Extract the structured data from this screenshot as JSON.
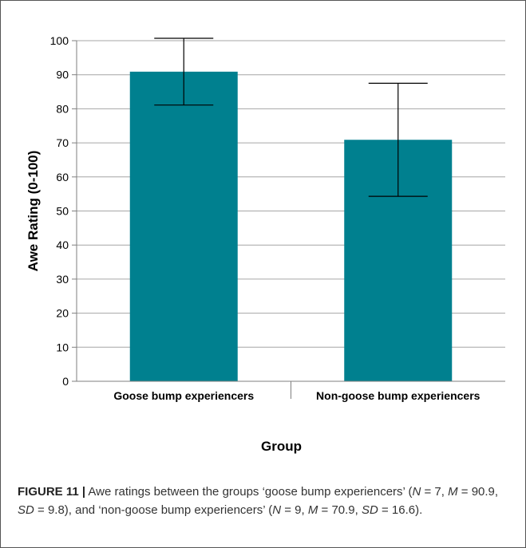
{
  "chart_data": {
    "type": "bar",
    "categories": [
      "Goose bump experiencers",
      "Non-goose bump experiencers"
    ],
    "values": [
      90.9,
      70.9
    ],
    "error": [
      9.8,
      16.6
    ],
    "xlabel": "Group",
    "ylabel": "Awe Rating (0-100)",
    "ylim": [
      0,
      100
    ],
    "yticks": [
      0,
      10,
      20,
      30,
      40,
      50,
      60,
      70,
      80,
      90,
      100
    ],
    "grid": true,
    "bar_color": "#00808f"
  },
  "caption": {
    "label": "FIGURE 11 |",
    "seg1": " Awe ratings between the groups ‘goose bump experiencers’ (",
    "n": "N",
    "eq7": " = 7, ",
    "m": "M",
    "eq909": " = 90.9, ",
    "sd": "SD",
    "eq98": " = 9.8), and ‘non-goose bump experiencers’ (",
    "n2": "N",
    "eq9": " = 9, ",
    "m2": "M",
    "eq709": " = 70.9, ",
    "sd2": "SD",
    "eq166": " = 16.6)."
  }
}
